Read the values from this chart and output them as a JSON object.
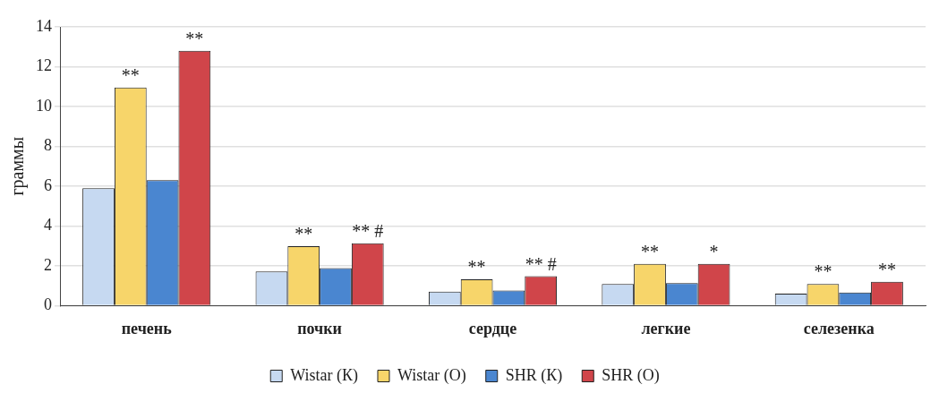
{
  "chart_data": {
    "type": "bar",
    "ylabel": "граммы",
    "categories": [
      "печень",
      "почки",
      "сердце",
      "легкие",
      "селезенка"
    ],
    "series": [
      {
        "name": "Wistar (К)",
        "color": "#c6d9f1",
        "values": [
          5.9,
          1.71,
          0.7,
          1.09,
          0.6
        ]
      },
      {
        "name": "Wistar (О)",
        "color": "#f7d56a",
        "values": [
          10.95,
          2.99,
          1.32,
          2.1,
          1.09
        ],
        "value_labels": [
          "**",
          "**",
          "**",
          "**",
          "**"
        ]
      },
      {
        "name": "SHR (К)",
        "color": "#4a86d0",
        "values": [
          6.3,
          1.88,
          0.76,
          1.13,
          0.66
        ]
      },
      {
        "name": "SHR (О)",
        "color": "#d0454a",
        "values": [
          12.8,
          3.13,
          1.48,
          2.1,
          1.2
        ],
        "value_labels": [
          "**",
          "** #",
          "** #",
          "*",
          "**"
        ]
      }
    ],
    "ylim": [
      0,
      14
    ],
    "yticks": [
      0,
      2,
      4,
      6,
      8,
      10,
      12,
      14
    ],
    "grid": "y",
    "legend": "bottom"
  }
}
